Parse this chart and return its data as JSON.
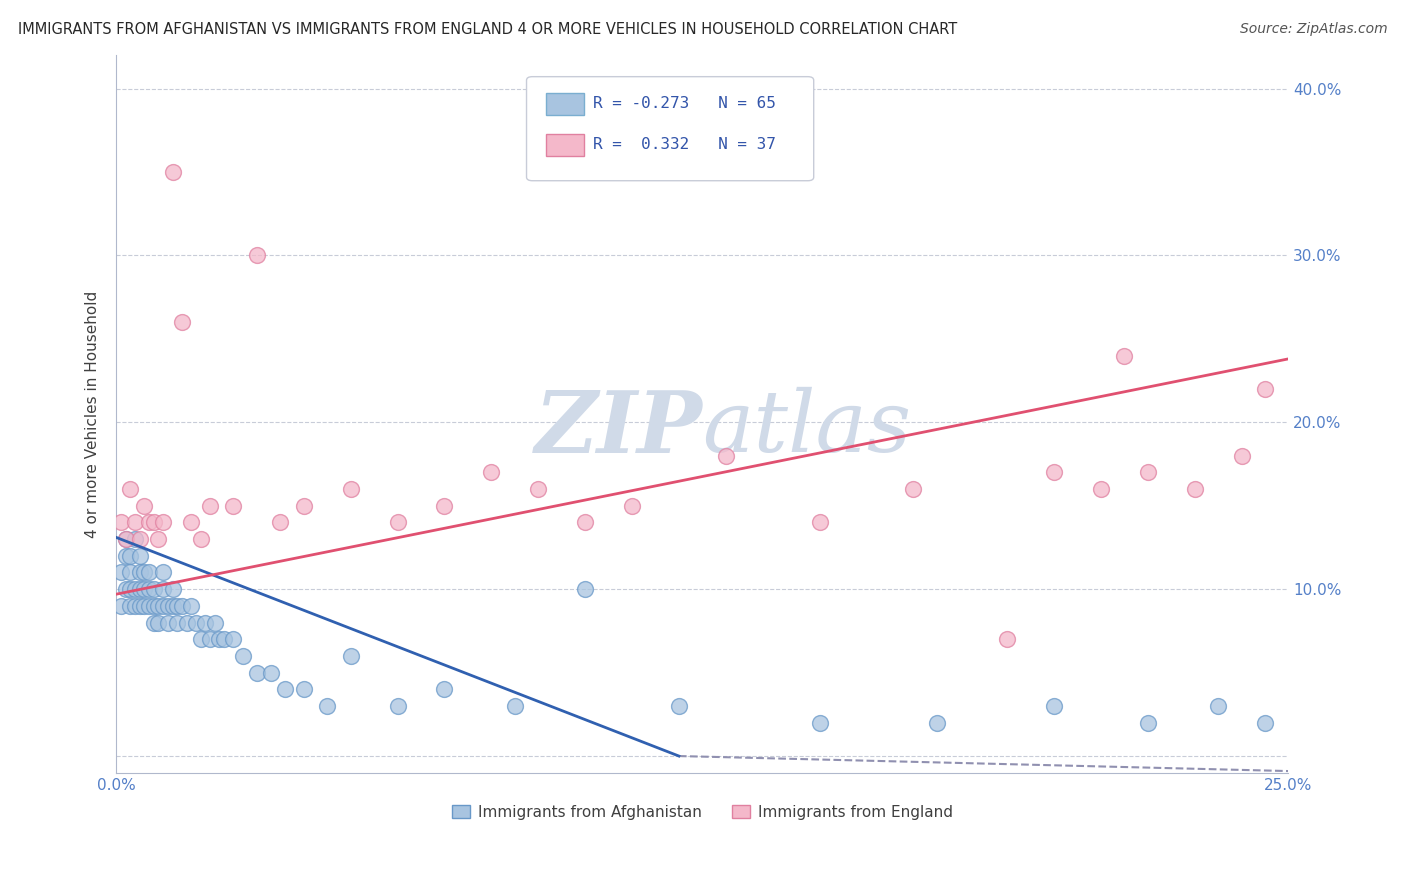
{
  "title": "IMMIGRANTS FROM AFGHANISTAN VS IMMIGRANTS FROM ENGLAND 4 OR MORE VEHICLES IN HOUSEHOLD CORRELATION CHART",
  "source": "Source: ZipAtlas.com",
  "ylabel": "4 or more Vehicles in Household",
  "legend_label1": "Immigrants from Afghanistan",
  "legend_label2": "Immigrants from England",
  "R1": -0.273,
  "N1": 65,
  "R2": 0.332,
  "N2": 37,
  "color_blue": "#a8c4e0",
  "color_pink": "#f4b8ca",
  "line_blue": "#3060b0",
  "line_pink": "#e05070",
  "line_dashed": "#9090b0",
  "bg_color": "#ffffff",
  "grid_color": "#c8ccd8",
  "watermark_color": "#d0dae8",
  "xlim": [
    0.0,
    0.25
  ],
  "ylim": [
    -0.01,
    0.42
  ],
  "yticks": [
    0.0,
    0.1,
    0.2,
    0.3,
    0.4
  ],
  "ytick_labels_right": [
    "",
    "10.0%",
    "20.0%",
    "30.0%",
    "40.0%"
  ],
  "afghanistan_x": [
    0.001,
    0.001,
    0.002,
    0.002,
    0.002,
    0.003,
    0.003,
    0.003,
    0.003,
    0.004,
    0.004,
    0.004,
    0.005,
    0.005,
    0.005,
    0.005,
    0.006,
    0.006,
    0.006,
    0.007,
    0.007,
    0.007,
    0.008,
    0.008,
    0.008,
    0.009,
    0.009,
    0.01,
    0.01,
    0.01,
    0.011,
    0.011,
    0.012,
    0.012,
    0.013,
    0.013,
    0.014,
    0.015,
    0.016,
    0.017,
    0.018,
    0.019,
    0.02,
    0.021,
    0.022,
    0.023,
    0.025,
    0.027,
    0.03,
    0.033,
    0.036,
    0.04,
    0.045,
    0.05,
    0.06,
    0.07,
    0.085,
    0.1,
    0.12,
    0.15,
    0.175,
    0.2,
    0.22,
    0.235,
    0.245
  ],
  "afghanistan_y": [
    0.09,
    0.11,
    0.1,
    0.12,
    0.13,
    0.09,
    0.1,
    0.11,
    0.12,
    0.09,
    0.1,
    0.13,
    0.09,
    0.1,
    0.11,
    0.12,
    0.09,
    0.1,
    0.11,
    0.09,
    0.1,
    0.11,
    0.08,
    0.09,
    0.1,
    0.08,
    0.09,
    0.09,
    0.1,
    0.11,
    0.08,
    0.09,
    0.09,
    0.1,
    0.08,
    0.09,
    0.09,
    0.08,
    0.09,
    0.08,
    0.07,
    0.08,
    0.07,
    0.08,
    0.07,
    0.07,
    0.07,
    0.06,
    0.05,
    0.05,
    0.04,
    0.04,
    0.03,
    0.06,
    0.03,
    0.04,
    0.03,
    0.1,
    0.03,
    0.02,
    0.02,
    0.03,
    0.02,
    0.03,
    0.02
  ],
  "england_x": [
    0.001,
    0.002,
    0.003,
    0.004,
    0.005,
    0.006,
    0.007,
    0.008,
    0.009,
    0.01,
    0.012,
    0.014,
    0.016,
    0.018,
    0.02,
    0.025,
    0.03,
    0.035,
    0.04,
    0.05,
    0.06,
    0.07,
    0.08,
    0.09,
    0.1,
    0.11,
    0.13,
    0.15,
    0.17,
    0.19,
    0.2,
    0.21,
    0.215,
    0.22,
    0.23,
    0.24,
    0.245
  ],
  "england_y": [
    0.14,
    0.13,
    0.16,
    0.14,
    0.13,
    0.15,
    0.14,
    0.14,
    0.13,
    0.14,
    0.35,
    0.26,
    0.14,
    0.13,
    0.15,
    0.15,
    0.3,
    0.14,
    0.15,
    0.16,
    0.14,
    0.15,
    0.17,
    0.16,
    0.14,
    0.15,
    0.18,
    0.14,
    0.16,
    0.07,
    0.17,
    0.16,
    0.24,
    0.17,
    0.16,
    0.18,
    0.22
  ],
  "blue_line_x0": 0.0,
  "blue_line_y0": 0.131,
  "blue_line_x1": 0.12,
  "blue_line_y1": 0.0,
  "dashed_line_x0": 0.12,
  "dashed_line_y0": 0.0,
  "dashed_line_x1": 0.25,
  "dashed_line_y1": -0.009,
  "pink_line_x0": 0.0,
  "pink_line_y0": 0.097,
  "pink_line_x1": 0.25,
  "pink_line_y1": 0.238
}
